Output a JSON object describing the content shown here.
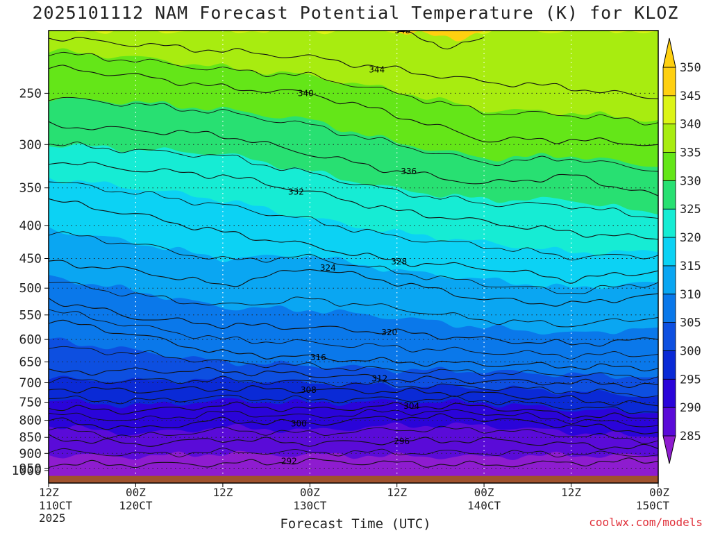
{
  "chart_data": {
    "type": "contour",
    "title": "2025101112 NAM Forecast Potential Temperature (K) for KLOZ",
    "xlabel": "Forecast Time (UTC)",
    "ylabel": "",
    "credit": "coolwx.com/models",
    "y_scale": "log-pressure",
    "ylim": [
      1000,
      200
    ],
    "xlim_hours": [
      0,
      84
    ],
    "y_ticks": [
      250,
      300,
      350,
      400,
      450,
      500,
      550,
      600,
      650,
      700,
      750,
      800,
      850,
      900,
      950,
      1000
    ],
    "x_ticks": [
      {
        "hour": 0,
        "line1": "12Z",
        "line2": "110CT",
        "line3": "2025"
      },
      {
        "hour": 12,
        "line1": "00Z",
        "line2": "120CT",
        "line3": ""
      },
      {
        "hour": 24,
        "line1": "12Z",
        "line2": "",
        "line3": ""
      },
      {
        "hour": 36,
        "line1": "00Z",
        "line2": "130CT",
        "line3": ""
      },
      {
        "hour": 48,
        "line1": "12Z",
        "line2": "",
        "line3": ""
      },
      {
        "hour": 60,
        "line1": "00Z",
        "line2": "140CT",
        "line3": ""
      },
      {
        "hour": 72,
        "line1": "12Z",
        "line2": "",
        "line3": ""
      },
      {
        "hour": 84,
        "line1": "00Z",
        "line2": "150CT",
        "line3": ""
      }
    ],
    "colorbar": {
      "levels": [
        285,
        290,
        295,
        300,
        305,
        310,
        315,
        320,
        325,
        330,
        335,
        340,
        345,
        350
      ],
      "labels": [
        "285",
        "290",
        "295",
        "300",
        "305",
        "310",
        "315",
        "320",
        "325",
        "330",
        "335",
        "340",
        "345",
        "350"
      ],
      "colors": [
        "#8e1ccf",
        "#5a0bd8",
        "#2a04d9",
        "#0a2ad6",
        "#0d4fe0",
        "#0a78ea",
        "#0aa6f2",
        "#0cd2f4",
        "#16ecd4",
        "#28e072",
        "#64e618",
        "#a8ec10",
        "#dcf416",
        "#ffd010",
        "#ffb80a"
      ]
    },
    "series": [
      {
        "name": "292",
        "values": [
          [
            0,
            935
          ],
          [
            12,
            936
          ],
          [
            24,
            934
          ],
          [
            36,
            925
          ],
          [
            48,
            932
          ],
          [
            60,
            938
          ],
          [
            72,
            930
          ],
          [
            84,
            925
          ]
        ]
      },
      {
        "name": "296",
        "values": [
          [
            0,
            850
          ],
          [
            12,
            872
          ],
          [
            24,
            855
          ],
          [
            36,
            868
          ],
          [
            48,
            862
          ],
          [
            60,
            858
          ],
          [
            72,
            872
          ],
          [
            84,
            885
          ]
        ]
      },
      {
        "name": "300",
        "values": [
          [
            0,
            800
          ],
          [
            12,
            825
          ],
          [
            24,
            800
          ],
          [
            36,
            810
          ],
          [
            48,
            790
          ],
          [
            60,
            795
          ],
          [
            72,
            815
          ],
          [
            84,
            835
          ]
        ]
      },
      {
        "name": "304",
        "values": [
          [
            0,
            765
          ],
          [
            12,
            775
          ],
          [
            24,
            758
          ],
          [
            36,
            770
          ],
          [
            48,
            760
          ],
          [
            60,
            762
          ],
          [
            72,
            785
          ],
          [
            84,
            795
          ]
        ]
      },
      {
        "name": "308",
        "values": [
          [
            0,
            715
          ],
          [
            12,
            720
          ],
          [
            24,
            715
          ],
          [
            36,
            718
          ],
          [
            48,
            722
          ],
          [
            60,
            728
          ],
          [
            72,
            742
          ],
          [
            84,
            760
          ]
        ]
      },
      {
        "name": "312",
        "values": [
          [
            0,
            675
          ],
          [
            12,
            670
          ],
          [
            24,
            672
          ],
          [
            36,
            680
          ],
          [
            48,
            690
          ],
          [
            60,
            695
          ],
          [
            72,
            700
          ],
          [
            84,
            705
          ]
        ]
      },
      {
        "name": "316",
        "values": [
          [
            0,
            560
          ],
          [
            12,
            590
          ],
          [
            24,
            630
          ],
          [
            36,
            640
          ],
          [
            48,
            650
          ],
          [
            60,
            655
          ],
          [
            72,
            660
          ],
          [
            84,
            665
          ]
        ]
      },
      {
        "name": "320",
        "values": [
          [
            0,
            520
          ],
          [
            12,
            555
          ],
          [
            24,
            570
          ],
          [
            36,
            575
          ],
          [
            48,
            585
          ],
          [
            60,
            600
          ],
          [
            72,
            610
          ],
          [
            84,
            600
          ]
        ]
      },
      {
        "name": "324",
        "values": [
          [
            0,
            455
          ],
          [
            12,
            470
          ],
          [
            24,
            495
          ],
          [
            36,
            465
          ],
          [
            48,
            490
          ],
          [
            60,
            520
          ],
          [
            72,
            530
          ],
          [
            84,
            510
          ]
        ]
      },
      {
        "name": "328",
        "values": [
          [
            0,
            365
          ],
          [
            12,
            385
          ],
          [
            24,
            410
          ],
          [
            36,
            430
          ],
          [
            48,
            455
          ],
          [
            60,
            465
          ],
          [
            72,
            485
          ],
          [
            84,
            470
          ]
        ]
      },
      {
        "name": "332",
        "values": [
          [
            0,
            318
          ],
          [
            12,
            328
          ],
          [
            24,
            335
          ],
          [
            36,
            355
          ],
          [
            48,
            380
          ],
          [
            60,
            395
          ],
          [
            72,
            410
          ],
          [
            84,
            420
          ]
        ]
      },
      {
        "name": "336",
        "values": [
          [
            0,
            280
          ],
          [
            12,
            285
          ],
          [
            24,
            290
          ],
          [
            36,
            310
          ],
          [
            48,
            330
          ],
          [
            60,
            345
          ],
          [
            72,
            335
          ],
          [
            84,
            360
          ]
        ]
      },
      {
        "name": "340",
        "values": [
          [
            0,
            228
          ],
          [
            12,
            235
          ],
          [
            24,
            245
          ],
          [
            36,
            250
          ],
          [
            48,
            270
          ],
          [
            60,
            295
          ],
          [
            72,
            295
          ],
          [
            84,
            300
          ]
        ]
      },
      {
        "name": "344",
        "values": [
          [
            0,
            205
          ],
          [
            12,
            210
          ],
          [
            24,
            215
          ],
          [
            36,
            220
          ],
          [
            48,
            230
          ],
          [
            60,
            240
          ],
          [
            72,
            245
          ],
          [
            84,
            255
          ]
        ]
      },
      {
        "name": "348",
        "values": [
          [
            48,
            200
          ],
          [
            54,
            212
          ],
          [
            60,
            205
          ]
        ]
      }
    ],
    "bands": [
      {
        "from": 285,
        "to": 290,
        "top": [
          [
            0,
            985
          ],
          [
            84,
            985
          ]
        ]
      },
      {
        "from": 290,
        "to": 295,
        "top": [
          [
            0,
            905
          ],
          [
            12,
            910
          ],
          [
            24,
            900
          ],
          [
            36,
            905
          ],
          [
            48,
            908
          ],
          [
            60,
            912
          ],
          [
            72,
            905
          ],
          [
            84,
            910
          ]
        ]
      },
      {
        "from": 295,
        "to": 300,
        "top": [
          [
            0,
            815
          ],
          [
            12,
            840
          ],
          [
            24,
            820
          ],
          [
            36,
            830
          ],
          [
            48,
            815
          ],
          [
            60,
            815
          ],
          [
            72,
            835
          ],
          [
            84,
            850
          ]
        ]
      },
      {
        "from": 300,
        "to": 305,
        "top": [
          [
            0,
            745
          ],
          [
            12,
            760
          ],
          [
            24,
            745
          ],
          [
            36,
            752
          ],
          [
            48,
            748
          ],
          [
            60,
            752
          ],
          [
            72,
            770
          ],
          [
            84,
            780
          ]
        ]
      },
      {
        "from": 305,
        "to": 310,
        "top": [
          [
            0,
            690
          ],
          [
            12,
            695
          ],
          [
            24,
            692
          ],
          [
            36,
            700
          ],
          [
            48,
            708
          ],
          [
            60,
            712
          ],
          [
            72,
            722
          ],
          [
            84,
            735
          ]
        ]
      },
      {
        "from": 310,
        "to": 315,
        "top": [
          [
            0,
            600
          ],
          [
            12,
            625
          ],
          [
            24,
            650
          ],
          [
            36,
            658
          ],
          [
            48,
            668
          ],
          [
            60,
            672
          ],
          [
            72,
            680
          ],
          [
            84,
            685
          ]
        ]
      },
      {
        "from": 315,
        "to": 320,
        "top": [
          [
            0,
            480
          ],
          [
            12,
            505
          ],
          [
            24,
            535
          ],
          [
            36,
            540
          ],
          [
            48,
            555
          ],
          [
            60,
            575
          ],
          [
            72,
            588
          ],
          [
            84,
            575
          ]
        ]
      },
      {
        "from": 320,
        "to": 325,
        "top": [
          [
            0,
            405
          ],
          [
            12,
            425
          ],
          [
            24,
            450
          ],
          [
            36,
            445
          ],
          [
            48,
            470
          ],
          [
            60,
            485
          ],
          [
            72,
            500
          ],
          [
            84,
            490
          ]
        ]
      },
      {
        "from": 325,
        "to": 330,
        "top": [
          [
            0,
            338
          ],
          [
            12,
            350
          ],
          [
            24,
            365
          ],
          [
            36,
            390
          ],
          [
            48,
            410
          ],
          [
            60,
            425
          ],
          [
            72,
            440
          ],
          [
            84,
            440
          ]
        ]
      },
      {
        "from": 330,
        "to": 335,
        "top": [
          [
            0,
            300
          ],
          [
            12,
            305
          ],
          [
            24,
            310
          ],
          [
            36,
            330
          ],
          [
            48,
            352
          ],
          [
            60,
            365
          ],
          [
            72,
            365
          ],
          [
            84,
            385
          ]
        ]
      },
      {
        "from": 335,
        "to": 340,
        "top": [
          [
            0,
            255
          ],
          [
            12,
            258
          ],
          [
            24,
            265
          ],
          [
            36,
            275
          ],
          [
            48,
            298
          ],
          [
            60,
            315
          ],
          [
            72,
            312
          ],
          [
            84,
            325
          ]
        ]
      },
      {
        "from": 340,
        "to": 345,
        "top": [
          [
            0,
            215
          ],
          [
            12,
            220
          ],
          [
            24,
            228
          ],
          [
            36,
            235
          ],
          [
            48,
            248
          ],
          [
            60,
            265
          ],
          [
            72,
            268
          ],
          [
            84,
            275
          ]
        ]
      },
      {
        "from": 345,
        "to": 350,
        "top": [
          [
            0,
            200
          ],
          [
            12,
            200
          ],
          [
            24,
            200
          ],
          [
            36,
            200
          ],
          [
            48,
            200
          ],
          [
            60,
            200
          ],
          [
            72,
            200
          ],
          [
            84,
            200
          ]
        ]
      },
      {
        "from": 350,
        "to": 355,
        "top": [
          [
            48,
            200
          ],
          [
            50,
            202
          ],
          [
            56,
            206
          ],
          [
            60,
            200
          ]
        ]
      }
    ],
    "ground": {
      "color": "#a0522d",
      "pressure": 975
    }
  }
}
